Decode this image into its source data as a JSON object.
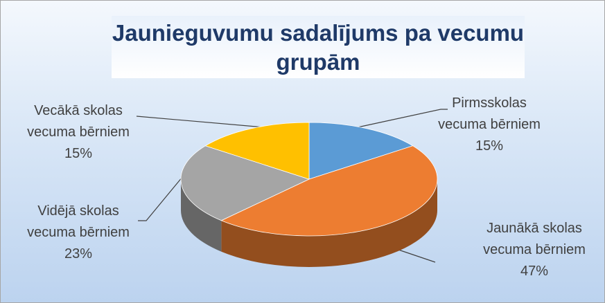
{
  "chart_data": {
    "type": "pie3d",
    "title": "Jaunieguvumu sadalījums pa vecumu grupām",
    "categories": [
      "Pirmsskolas vecuma bērniem",
      "Jaunākā skolas vecuma bērniem",
      "Vidējā skolas vecuma bērniem",
      "Vecākā skolas vecuma bērniem"
    ],
    "values": [
      15,
      47,
      23,
      15
    ],
    "value_labels": [
      "15%",
      "47%",
      "23%",
      "15%"
    ],
    "colors": [
      "#5b9bd5",
      "#ed7d31",
      "#a5a5a5",
      "#ffc000"
    ]
  }
}
